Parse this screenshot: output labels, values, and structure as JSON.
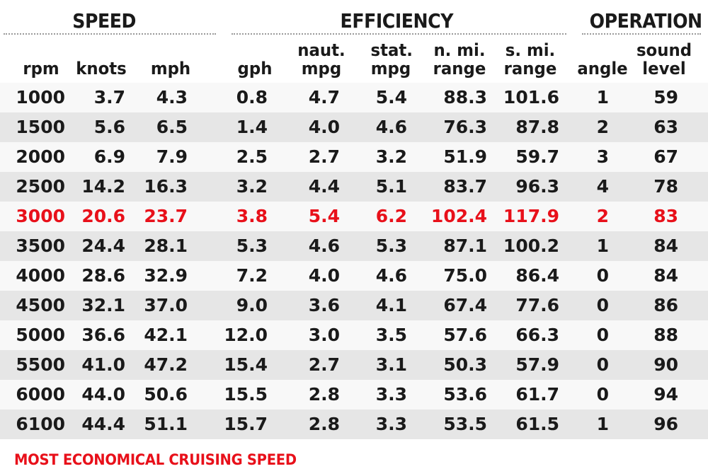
{
  "groups": {
    "speed": "SPEED",
    "efficiency": "EFFICIENCY",
    "operation": "OPERATION"
  },
  "columns": [
    {
      "key": "rpm",
      "line1": "",
      "line2": "rpm"
    },
    {
      "key": "knots",
      "line1": "",
      "line2": "knots"
    },
    {
      "key": "mph",
      "line1": "",
      "line2": "mph"
    },
    {
      "key": "gph",
      "line1": "",
      "line2": "gph"
    },
    {
      "key": "naut_mpg",
      "line1": "naut.",
      "line2": "mpg"
    },
    {
      "key": "stat_mpg",
      "line1": "stat.",
      "line2": "mpg"
    },
    {
      "key": "nmi_range",
      "line1": "n. mi.",
      "line2": "range"
    },
    {
      "key": "smi_range",
      "line1": "s. mi.",
      "line2": "range"
    },
    {
      "key": "angle",
      "line1": "",
      "line2": "angle"
    },
    {
      "key": "sound_level",
      "line1": "sound",
      "line2": "level"
    }
  ],
  "rows": [
    [
      "1000",
      "3.7",
      "4.3",
      "0.8",
      "4.7",
      "5.4",
      "88.3",
      "101.6",
      "1",
      "59"
    ],
    [
      "1500",
      "5.6",
      "6.5",
      "1.4",
      "4.0",
      "4.6",
      "76.3",
      "87.8",
      "2",
      "63"
    ],
    [
      "2000",
      "6.9",
      "7.9",
      "2.5",
      "2.7",
      "3.2",
      "51.9",
      "59.7",
      "3",
      "67"
    ],
    [
      "2500",
      "14.2",
      "16.3",
      "3.2",
      "4.4",
      "5.1",
      "83.7",
      "96.3",
      "4",
      "78"
    ],
    [
      "3000",
      "20.6",
      "23.7",
      "3.8",
      "5.4",
      "6.2",
      "102.4",
      "117.9",
      "2",
      "83"
    ],
    [
      "3500",
      "24.4",
      "28.1",
      "5.3",
      "4.6",
      "5.3",
      "87.1",
      "100.2",
      "1",
      "84"
    ],
    [
      "4000",
      "28.6",
      "32.9",
      "7.2",
      "4.0",
      "4.6",
      "75.0",
      "86.4",
      "0",
      "84"
    ],
    [
      "4500",
      "32.1",
      "37.0",
      "9.0",
      "3.6",
      "4.1",
      "67.4",
      "77.6",
      "0",
      "86"
    ],
    [
      "5000",
      "36.6",
      "42.1",
      "12.0",
      "3.0",
      "3.5",
      "57.6",
      "66.3",
      "0",
      "88"
    ],
    [
      "5500",
      "41.0",
      "47.2",
      "15.4",
      "2.7",
      "3.1",
      "50.3",
      "57.9",
      "0",
      "90"
    ],
    [
      "6000",
      "44.0",
      "50.6",
      "15.5",
      "2.8",
      "3.3",
      "53.6",
      "61.7",
      "0",
      "94"
    ],
    [
      "6100",
      "44.4",
      "51.1",
      "15.7",
      "2.8",
      "3.3",
      "53.5",
      "61.5",
      "1",
      "96"
    ]
  ],
  "highlight_row_index": 4,
  "footnote": "MOST ECONOMICAL CRUISING SPEED",
  "colors": {
    "highlight": "#e8101a",
    "text": "#1a1a1a",
    "row_light": "#f8f8f8",
    "row_dark": "#e6e6e6"
  },
  "chart_data": {
    "type": "table",
    "title": "",
    "column_groups": [
      {
        "name": "SPEED",
        "columns": [
          "rpm",
          "knots",
          "mph"
        ]
      },
      {
        "name": "EFFICIENCY",
        "columns": [
          "gph",
          "naut. mpg",
          "stat. mpg",
          "n. mi. range",
          "s. mi. range"
        ]
      },
      {
        "name": "OPERATION",
        "columns": [
          "angle",
          "sound level"
        ]
      }
    ],
    "columns": [
      "rpm",
      "knots",
      "mph",
      "gph",
      "naut. mpg",
      "stat. mpg",
      "n. mi. range",
      "s. mi. range",
      "angle",
      "sound level"
    ],
    "rows": [
      [
        1000,
        3.7,
        4.3,
        0.8,
        4.7,
        5.4,
        88.3,
        101.6,
        1,
        59
      ],
      [
        1500,
        5.6,
        6.5,
        1.4,
        4.0,
        4.6,
        76.3,
        87.8,
        2,
        63
      ],
      [
        2000,
        6.9,
        7.9,
        2.5,
        2.7,
        3.2,
        51.9,
        59.7,
        3,
        67
      ],
      [
        2500,
        14.2,
        16.3,
        3.2,
        4.4,
        5.1,
        83.7,
        96.3,
        4,
        78
      ],
      [
        3000,
        20.6,
        23.7,
        3.8,
        5.4,
        6.2,
        102.4,
        117.9,
        2,
        83
      ],
      [
        3500,
        24.4,
        28.1,
        5.3,
        4.6,
        5.3,
        87.1,
        100.2,
        1,
        84
      ],
      [
        4000,
        28.6,
        32.9,
        7.2,
        4.0,
        4.6,
        75.0,
        86.4,
        0,
        84
      ],
      [
        4500,
        32.1,
        37.0,
        9.0,
        3.6,
        4.1,
        67.4,
        77.6,
        0,
        86
      ],
      [
        5000,
        36.6,
        42.1,
        12.0,
        3.0,
        3.5,
        57.6,
        66.3,
        0,
        88
      ],
      [
        5500,
        41.0,
        47.2,
        15.4,
        2.7,
        3.1,
        50.3,
        57.9,
        0,
        90
      ],
      [
        6000,
        44.0,
        50.6,
        15.5,
        2.8,
        3.3,
        53.6,
        61.7,
        0,
        94
      ],
      [
        6100,
        44.4,
        51.1,
        15.7,
        2.8,
        3.3,
        53.5,
        61.5,
        1,
        96
      ]
    ],
    "highlighted_row": {
      "rpm": 3000,
      "note": "MOST ECONOMICAL CRUISING SPEED",
      "color": "#e8101a"
    },
    "striped_rows": true
  }
}
